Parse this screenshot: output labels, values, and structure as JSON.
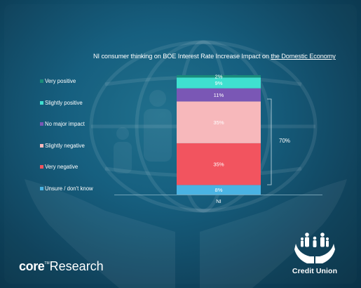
{
  "slide": {
    "title_part1": "NI consumer thinking on BOE Interest Rate Increase Impact on ",
    "title_underlined": "the Domestic Economy",
    "brand_left_bold": "core",
    "brand_left_tm": "TM",
    "brand_left_light": "Research",
    "brand_right": "Credit Union",
    "bracket_label": "70%"
  },
  "chart_data": {
    "type": "bar",
    "stacked": true,
    "categories": [
      "NI"
    ],
    "series": [
      {
        "name": "Unsure / don't know",
        "values": [
          8
        ],
        "color": "#4ab3e3",
        "label": "8%"
      },
      {
        "name": "Very negative",
        "values": [
          35
        ],
        "color": "#f2545f",
        "label": "35%"
      },
      {
        "name": "Slightly negative",
        "values": [
          35
        ],
        "color": "#f7b8bb",
        "label": "35%"
      },
      {
        "name": "No major impact",
        "values": [
          11
        ],
        "color": "#7a57b5",
        "label": "11%"
      },
      {
        "name": "Slightly positive",
        "values": [
          9
        ],
        "color": "#3fe0d0",
        "label": "9%"
      },
      {
        "name": "Very positive",
        "values": [
          2
        ],
        "color": "#1a8a7a",
        "label": "2%"
      }
    ],
    "ylim": [
      0,
      100
    ],
    "legend_position": "left",
    "annotations": [
      {
        "text": "70%",
        "spans": [
          "Very negative",
          "Slightly negative"
        ]
      }
    ]
  }
}
